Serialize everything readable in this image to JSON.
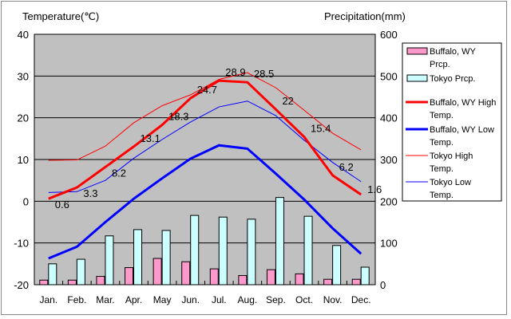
{
  "chart_data": {
    "type": "bar+line",
    "y_left_label": "Temperature(℃)",
    "y_right_label": "Precipitation(mm)",
    "y_left_range": [
      -20,
      40
    ],
    "y_left_ticks": [
      "40",
      "30",
      "20",
      "10",
      "0",
      "-10",
      "-20"
    ],
    "y_right_range": [
      0,
      600
    ],
    "y_right_ticks": [
      "600",
      "500",
      "400",
      "300",
      "200",
      "100",
      "0"
    ],
    "categories": [
      "Jan.",
      "Feb.",
      "Mar.",
      "Apr.",
      "May",
      "Jun.",
      "Jul.",
      "Aug.",
      "Sep.",
      "Oct.",
      "Nov.",
      "Dec."
    ],
    "bar_series": [
      {
        "name": "Buffalo, WY Prcp.",
        "color": "#ff99cc",
        "values": [
          11,
          11,
          20,
          41,
          63,
          55,
          38,
          22,
          36,
          26,
          13,
          13
        ]
      },
      {
        "name": "Tokyo Prcp.",
        "color": "#ccffff",
        "values": [
          50,
          61,
          117,
          132,
          130,
          166,
          162,
          157,
          209,
          164,
          94,
          42
        ]
      }
    ],
    "line_series": [
      {
        "name": "Buffalo, WY High Temp.",
        "color": "#ff0000",
        "width": "thick",
        "values": [
          0.6,
          3.3,
          8.2,
          13.1,
          18.3,
          24.7,
          28.9,
          28.5,
          22,
          15.4,
          6.2,
          1.6
        ],
        "labels": [
          "0.6",
          "3.3",
          "8.2",
          "13.1",
          "18.3",
          "24.7",
          "28.9",
          "28.5",
          "22",
          "15.4",
          "6.2",
          "1.6"
        ]
      },
      {
        "name": "Buffalo, WY Low Temp.",
        "color": "#0000ff",
        "width": "thick",
        "values": [
          -13.7,
          -10.9,
          -5.0,
          0.6,
          5.5,
          10.2,
          13.4,
          12.6,
          6.6,
          0.4,
          -6.5,
          -12.6
        ]
      },
      {
        "name": "Tokyo High Temp.",
        "color": "#ff0000",
        "width": "thin",
        "values": [
          9.8,
          9.9,
          13.2,
          18.8,
          22.9,
          25.5,
          29.2,
          30.8,
          27.2,
          21.8,
          16.3,
          12.3
        ]
      },
      {
        "name": "Tokyo Low Temp.",
        "color": "#0000ff",
        "width": "thin",
        "values": [
          2.1,
          2.3,
          5.0,
          10.3,
          14.8,
          19.0,
          22.6,
          24.0,
          20.5,
          14.6,
          9.3,
          4.7
        ]
      }
    ],
    "grid": true,
    "legend_position": "right"
  }
}
